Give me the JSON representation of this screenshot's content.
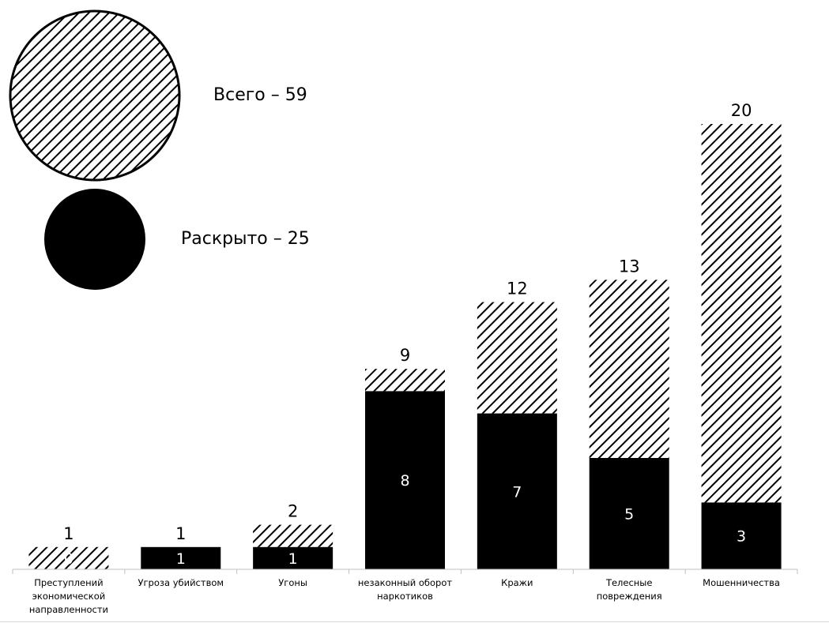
{
  "chart_data": {
    "type": "bar",
    "stacked": true,
    "categories": [
      "Преступлений экономической направленности",
      "Угроза убийством",
      "Угоны",
      "незаконный оборот наркотиков",
      "Кражи",
      "Телесные повреждения",
      "Мошенничества"
    ],
    "totals": [
      1,
      1,
      2,
      9,
      12,
      13,
      20
    ],
    "solved": [
      0,
      1,
      1,
      8,
      7,
      5,
      3
    ],
    "ylim": [
      0,
      20
    ],
    "grid": false,
    "legend_position": "top-left",
    "legend": {
      "total_label": "Всего – 59",
      "solved_label": "Раскрыто – 25"
    },
    "colors": {
      "solved": "#000000",
      "total_hatch": "#000000",
      "background": "#ffffff"
    }
  }
}
